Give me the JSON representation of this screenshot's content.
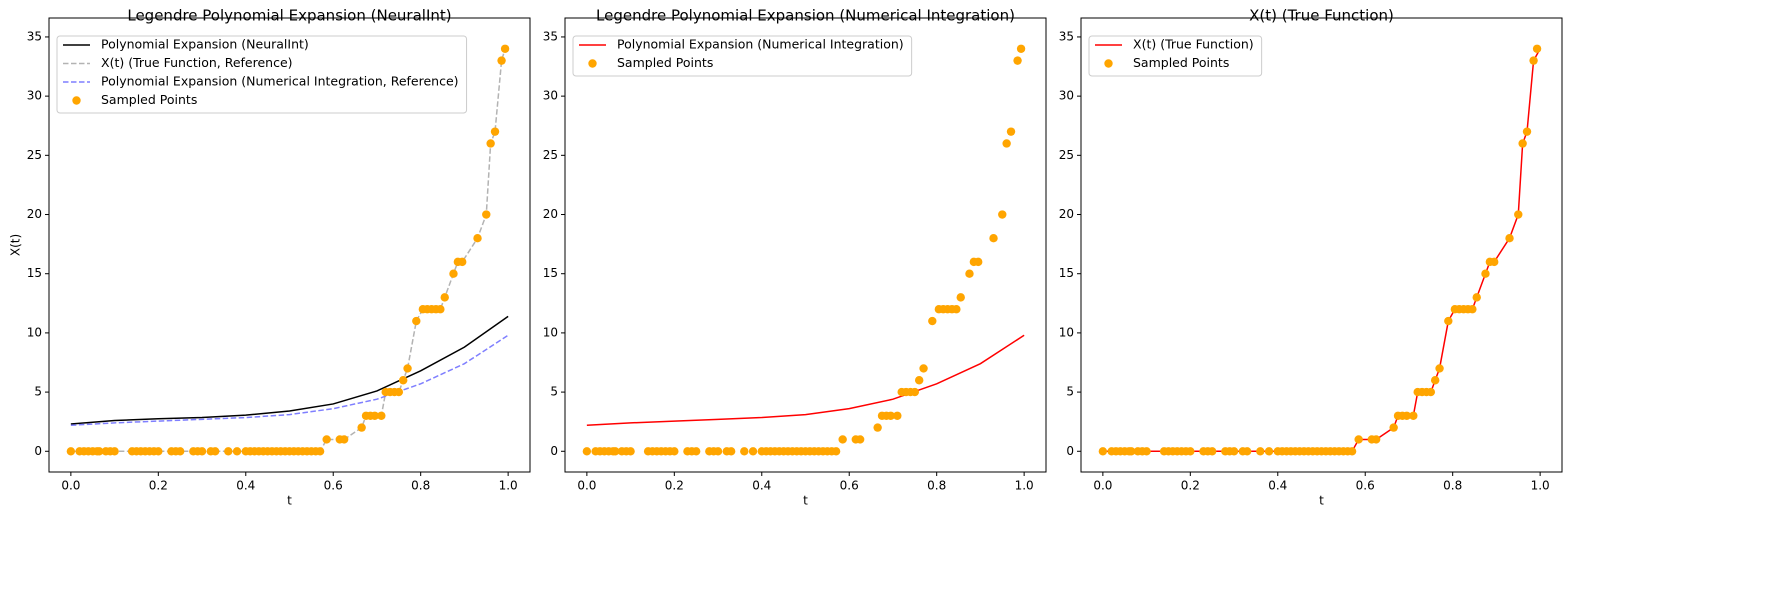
{
  "chart_data": [
    {
      "type": "line",
      "title": "Legendre Polynomial Expansion (NeuralInt)",
      "xlabel": "t",
      "ylabel": "X(t)",
      "xlim": [
        -0.05,
        1.05
      ],
      "ylim": [
        -1.75,
        36.6
      ],
      "xticks": [
        0.0,
        0.2,
        0.4,
        0.6,
        0.8,
        1.0
      ],
      "yticks": [
        0,
        5,
        10,
        15,
        20,
        25,
        30,
        35
      ],
      "legend": "upper left",
      "xticklabels": [
        "0.0",
        "0.2",
        "0.4",
        "0.6",
        "0.8",
        "1.0"
      ],
      "series": [
        {
          "name": "Polynomial Expansion (NeuralInt)",
          "kind": "line",
          "linestyle": "solid",
          "color": "#000000",
          "x": [
            0,
            0.1,
            0.2,
            0.3,
            0.4,
            0.5,
            0.6,
            0.7,
            0.8,
            0.9,
            1.0
          ],
          "values": [
            2.3,
            2.6,
            2.75,
            2.85,
            3.05,
            3.4,
            4.0,
            5.1,
            6.8,
            8.8,
            11.4
          ]
        },
        {
          "name": "X(t) (True Function, Reference)",
          "kind": "line",
          "linestyle": "dashed",
          "color": "#b3b3b3",
          "x": [
            0,
            0.57,
            0.585,
            0.625,
            0.665,
            0.675,
            0.71,
            0.72,
            0.75,
            0.76,
            0.77,
            0.79,
            0.805,
            0.845,
            0.855,
            0.875,
            0.885,
            0.895,
            0.93,
            0.95,
            0.96,
            0.97,
            0.985,
            0.993
          ],
          "values": [
            0,
            0,
            1,
            1,
            2,
            3,
            3,
            5,
            5,
            6,
            7,
            11,
            12,
            12,
            13,
            15,
            16,
            16,
            18,
            20,
            26,
            27,
            33,
            34
          ]
        },
        {
          "name": "Polynomial Expansion (Numerical Integration, Reference)",
          "kind": "line",
          "linestyle": "dashed",
          "color": "#7f7fff",
          "x": [
            0,
            0.1,
            0.2,
            0.3,
            0.4,
            0.5,
            0.6,
            0.7,
            0.8,
            0.9,
            1.0
          ],
          "values": [
            2.2,
            2.4,
            2.55,
            2.7,
            2.85,
            3.1,
            3.6,
            4.4,
            5.7,
            7.4,
            9.8
          ]
        },
        {
          "name": "Sampled Points",
          "kind": "scatter",
          "color": "#ffa500",
          "x": [
            0,
            0.02,
            0.03,
            0.04,
            0.05,
            0.06,
            0.065,
            0.08,
            0.09,
            0.1,
            0.14,
            0.15,
            0.16,
            0.17,
            0.18,
            0.19,
            0.2,
            0.23,
            0.24,
            0.25,
            0.28,
            0.29,
            0.3,
            0.32,
            0.33,
            0.36,
            0.38,
            0.4,
            0.41,
            0.42,
            0.43,
            0.44,
            0.45,
            0.46,
            0.47,
            0.48,
            0.49,
            0.5,
            0.51,
            0.52,
            0.53,
            0.54,
            0.55,
            0.56,
            0.57,
            0.585,
            0.615,
            0.625,
            0.665,
            0.675,
            0.685,
            0.695,
            0.71,
            0.72,
            0.73,
            0.74,
            0.75,
            0.76,
            0.77,
            0.79,
            0.805,
            0.815,
            0.825,
            0.835,
            0.845,
            0.855,
            0.875,
            0.885,
            0.895,
            0.93,
            0.95,
            0.96,
            0.97,
            0.985,
            0.993
          ],
          "values": [
            0,
            0,
            0,
            0,
            0,
            0,
            0,
            0,
            0,
            0,
            0,
            0,
            0,
            0,
            0,
            0,
            0,
            0,
            0,
            0,
            0,
            0,
            0,
            0,
            0,
            0,
            0,
            0,
            0,
            0,
            0,
            0,
            0,
            0,
            0,
            0,
            0,
            0,
            0,
            0,
            0,
            0,
            0,
            0,
            0,
            1,
            1,
            1,
            2,
            3,
            3,
            3,
            3,
            5,
            5,
            5,
            5,
            6,
            7,
            11,
            12,
            12,
            12,
            12,
            12,
            13,
            15,
            16,
            16,
            18,
            20,
            26,
            27,
            33,
            34
          ]
        }
      ]
    },
    {
      "type": "line",
      "title": "Legendre Polynomial Expansion (Numerical Integration)",
      "xlabel": "t",
      "xlim": [
        -0.05,
        1.05
      ],
      "ylim": [
        -1.75,
        36.6
      ],
      "xticks": [
        0.0,
        0.2,
        0.4,
        0.6,
        0.8,
        1.0
      ],
      "yticks": [
        0,
        5,
        10,
        15,
        20,
        25,
        30,
        35
      ],
      "legend": "upper left",
      "xticklabels": [
        "0.0",
        "0.2",
        "0.4",
        "0.6",
        "0.8",
        "1.0"
      ],
      "series": [
        {
          "name": "Polynomial Expansion (Numerical Integration)",
          "kind": "line",
          "linestyle": "solid",
          "color": "#ff0000",
          "x": [
            0,
            0.1,
            0.2,
            0.3,
            0.4,
            0.5,
            0.6,
            0.7,
            0.8,
            0.9,
            1.0
          ],
          "values": [
            2.2,
            2.4,
            2.55,
            2.7,
            2.85,
            3.1,
            3.6,
            4.4,
            5.7,
            7.4,
            9.8
          ]
        },
        {
          "name": "Sampled Points",
          "kind": "scatter",
          "color": "#ffa500",
          "x": [
            0,
            0.02,
            0.03,
            0.04,
            0.05,
            0.06,
            0.065,
            0.08,
            0.09,
            0.1,
            0.14,
            0.15,
            0.16,
            0.17,
            0.18,
            0.19,
            0.2,
            0.23,
            0.24,
            0.25,
            0.28,
            0.29,
            0.3,
            0.32,
            0.33,
            0.36,
            0.38,
            0.4,
            0.41,
            0.42,
            0.43,
            0.44,
            0.45,
            0.46,
            0.47,
            0.48,
            0.49,
            0.5,
            0.51,
            0.52,
            0.53,
            0.54,
            0.55,
            0.56,
            0.57,
            0.585,
            0.615,
            0.625,
            0.665,
            0.675,
            0.685,
            0.695,
            0.71,
            0.72,
            0.73,
            0.74,
            0.75,
            0.76,
            0.77,
            0.79,
            0.805,
            0.815,
            0.825,
            0.835,
            0.845,
            0.855,
            0.875,
            0.885,
            0.895,
            0.93,
            0.95,
            0.96,
            0.97,
            0.985,
            0.993
          ],
          "values": [
            0,
            0,
            0,
            0,
            0,
            0,
            0,
            0,
            0,
            0,
            0,
            0,
            0,
            0,
            0,
            0,
            0,
            0,
            0,
            0,
            0,
            0,
            0,
            0,
            0,
            0,
            0,
            0,
            0,
            0,
            0,
            0,
            0,
            0,
            0,
            0,
            0,
            0,
            0,
            0,
            0,
            0,
            0,
            0,
            0,
            1,
            1,
            1,
            2,
            3,
            3,
            3,
            3,
            5,
            5,
            5,
            5,
            6,
            7,
            11,
            12,
            12,
            12,
            12,
            12,
            13,
            15,
            16,
            16,
            18,
            20,
            26,
            27,
            33,
            34
          ]
        }
      ]
    },
    {
      "type": "line",
      "title": "X(t) (True Function)",
      "xlabel": "t",
      "xlim": [
        -0.05,
        1.05
      ],
      "ylim": [
        -1.75,
        36.6
      ],
      "xticks": [
        0.0,
        0.2,
        0.4,
        0.6,
        0.8,
        1.0
      ],
      "yticks": [
        0,
        5,
        10,
        15,
        20,
        25,
        30,
        35
      ],
      "legend": "upper left",
      "xticklabels": [
        "0.0",
        "0.2",
        "0.4",
        "0.6",
        "0.8",
        "1.0"
      ],
      "series": [
        {
          "name": "X(t) (True Function)",
          "kind": "line",
          "linestyle": "solid",
          "color": "#ff0000",
          "x": [
            0,
            0.57,
            0.585,
            0.625,
            0.665,
            0.675,
            0.71,
            0.72,
            0.75,
            0.76,
            0.77,
            0.79,
            0.805,
            0.845,
            0.855,
            0.875,
            0.885,
            0.895,
            0.93,
            0.95,
            0.96,
            0.97,
            0.985,
            1.0
          ],
          "values": [
            0,
            0,
            1,
            1,
            2,
            3,
            3,
            5,
            5,
            6,
            7,
            11,
            12,
            12,
            13,
            15,
            16,
            16,
            18,
            20,
            26,
            27,
            33,
            34
          ]
        },
        {
          "name": "Sampled Points",
          "kind": "scatter",
          "color": "#ffa500",
          "x": [
            0,
            0.02,
            0.03,
            0.04,
            0.05,
            0.06,
            0.065,
            0.08,
            0.09,
            0.1,
            0.14,
            0.15,
            0.16,
            0.17,
            0.18,
            0.19,
            0.2,
            0.23,
            0.24,
            0.25,
            0.28,
            0.29,
            0.3,
            0.32,
            0.33,
            0.36,
            0.38,
            0.4,
            0.41,
            0.42,
            0.43,
            0.44,
            0.45,
            0.46,
            0.47,
            0.48,
            0.49,
            0.5,
            0.51,
            0.52,
            0.53,
            0.54,
            0.55,
            0.56,
            0.57,
            0.585,
            0.615,
            0.625,
            0.665,
            0.675,
            0.685,
            0.695,
            0.71,
            0.72,
            0.73,
            0.74,
            0.75,
            0.76,
            0.77,
            0.79,
            0.805,
            0.815,
            0.825,
            0.835,
            0.845,
            0.855,
            0.875,
            0.885,
            0.895,
            0.93,
            0.95,
            0.96,
            0.97,
            0.985,
            0.993
          ],
          "values": [
            0,
            0,
            0,
            0,
            0,
            0,
            0,
            0,
            0,
            0,
            0,
            0,
            0,
            0,
            0,
            0,
            0,
            0,
            0,
            0,
            0,
            0,
            0,
            0,
            0,
            0,
            0,
            0,
            0,
            0,
            0,
            0,
            0,
            0,
            0,
            0,
            0,
            0,
            0,
            0,
            0,
            0,
            0,
            0,
            0,
            1,
            1,
            1,
            2,
            3,
            3,
            3,
            3,
            5,
            5,
            5,
            5,
            6,
            7,
            11,
            12,
            12,
            12,
            12,
            12,
            13,
            15,
            16,
            16,
            18,
            20,
            26,
            27,
            33,
            34
          ]
        }
      ]
    }
  ]
}
